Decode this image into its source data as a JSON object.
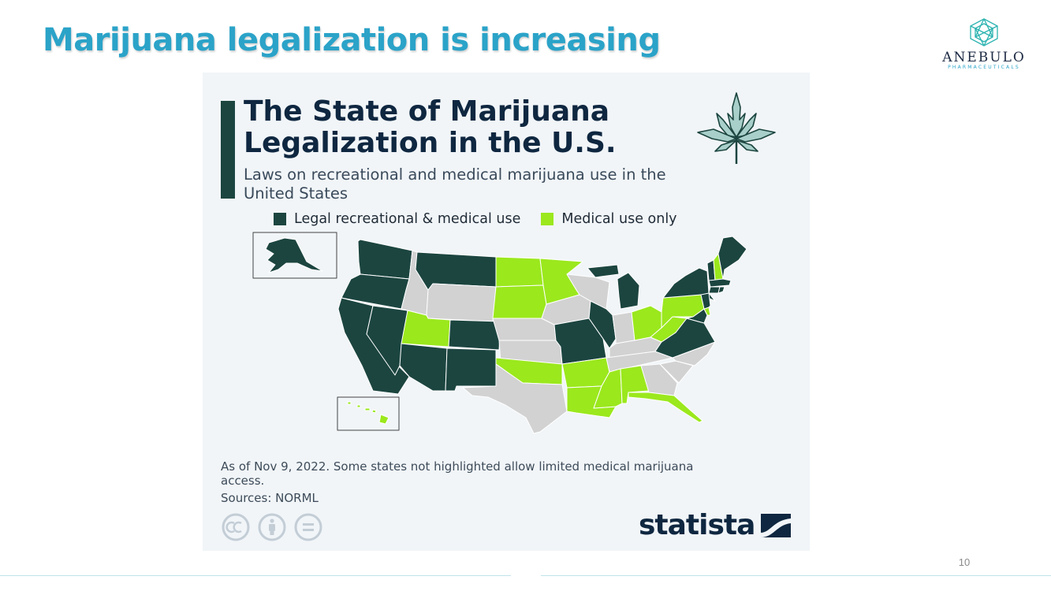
{
  "slide": {
    "title": "Marijuana legalization is increasing",
    "page_number": "10"
  },
  "logo": {
    "name": "ANEBULO",
    "tagline": "PHARMACEUTICALS",
    "icon": "hexagon-logo-icon"
  },
  "infographic": {
    "title": "The State of Marijuana Legalization in the U.S.",
    "subtitle": "Laws on recreational and medical marijuana use in the United States",
    "legend": [
      {
        "label": "Legal recreational & medical use",
        "color": "#1c4540"
      },
      {
        "label": "Medical use only",
        "color": "#9be81d"
      }
    ],
    "footnote": "As of Nov 9, 2022. Some states not highlighted allow limited medical marijuana access.",
    "sources": "Sources: NORML",
    "brand": "statista",
    "icons": [
      "cannabis-leaf-icon",
      "cc-icon",
      "by-icon",
      "nd-icon",
      "statista-mark-icon"
    ]
  },
  "map_data": {
    "as_of": "Nov 9, 2022",
    "colors": {
      "recreational": "#1c4540",
      "medical": "#9be81d",
      "none": "#d2d2d2"
    },
    "states": [
      {
        "name": "Washington",
        "status": "recreational"
      },
      {
        "name": "Oregon",
        "status": "recreational"
      },
      {
        "name": "California",
        "status": "recreational"
      },
      {
        "name": "Nevada",
        "status": "recreational"
      },
      {
        "name": "Idaho",
        "status": "none"
      },
      {
        "name": "Montana",
        "status": "recreational"
      },
      {
        "name": "Wyoming",
        "status": "none"
      },
      {
        "name": "Utah",
        "status": "medical"
      },
      {
        "name": "Arizona",
        "status": "recreational"
      },
      {
        "name": "Colorado",
        "status": "recreational"
      },
      {
        "name": "New Mexico",
        "status": "recreational"
      },
      {
        "name": "North Dakota",
        "status": "medical"
      },
      {
        "name": "South Dakota",
        "status": "medical"
      },
      {
        "name": "Nebraska",
        "status": "none"
      },
      {
        "name": "Kansas",
        "status": "none"
      },
      {
        "name": "Oklahoma",
        "status": "medical"
      },
      {
        "name": "Texas",
        "status": "none"
      },
      {
        "name": "Minnesota",
        "status": "medical"
      },
      {
        "name": "Iowa",
        "status": "none"
      },
      {
        "name": "Missouri",
        "status": "recreational"
      },
      {
        "name": "Arkansas",
        "status": "medical"
      },
      {
        "name": "Louisiana",
        "status": "medical"
      },
      {
        "name": "Wisconsin",
        "status": "none"
      },
      {
        "name": "Illinois",
        "status": "recreational"
      },
      {
        "name": "Michigan",
        "status": "recreational"
      },
      {
        "name": "Indiana",
        "status": "none"
      },
      {
        "name": "Ohio",
        "status": "medical"
      },
      {
        "name": "Kentucky",
        "status": "none"
      },
      {
        "name": "Tennessee",
        "status": "none"
      },
      {
        "name": "Mississippi",
        "status": "medical"
      },
      {
        "name": "Alabama",
        "status": "medical"
      },
      {
        "name": "Georgia",
        "status": "none"
      },
      {
        "name": "Florida",
        "status": "medical"
      },
      {
        "name": "South Carolina",
        "status": "none"
      },
      {
        "name": "North Carolina",
        "status": "none"
      },
      {
        "name": "Virginia",
        "status": "recreational"
      },
      {
        "name": "West Virginia",
        "status": "medical"
      },
      {
        "name": "Pennsylvania",
        "status": "medical"
      },
      {
        "name": "New York",
        "status": "recreational"
      },
      {
        "name": "Vermont",
        "status": "recreational"
      },
      {
        "name": "New Hampshire",
        "status": "medical"
      },
      {
        "name": "Maine",
        "status": "recreational"
      },
      {
        "name": "Massachusetts",
        "status": "recreational"
      },
      {
        "name": "Rhode Island",
        "status": "recreational"
      },
      {
        "name": "Connecticut",
        "status": "recreational"
      },
      {
        "name": "New Jersey",
        "status": "recreational"
      },
      {
        "name": "Delaware",
        "status": "medical"
      },
      {
        "name": "Maryland",
        "status": "recreational"
      },
      {
        "name": "Alaska",
        "status": "recreational"
      },
      {
        "name": "Hawaii",
        "status": "medical"
      }
    ]
  }
}
